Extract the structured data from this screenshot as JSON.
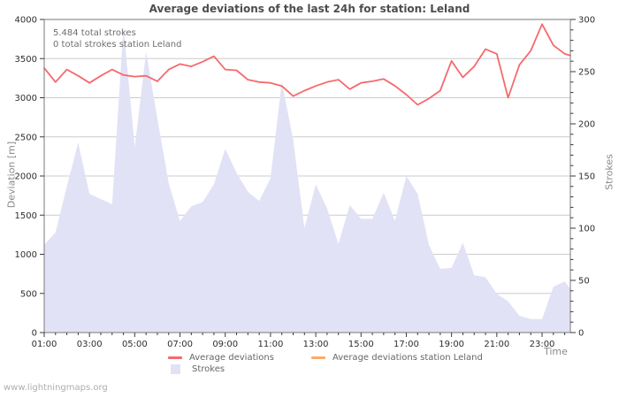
{
  "page": {
    "title": "Average deviations of the last 24h for station: Leland",
    "watermark": "www.lightningmaps.org"
  },
  "annotations": {
    "total_strokes": "5.484 total strokes",
    "station_strokes": "0 total strokes station Leland"
  },
  "axes": {
    "y_left_label": "Deviation [m]",
    "y_right_label": "Strokes",
    "x_label": "Time"
  },
  "legend": [
    {
      "label": "Average deviations",
      "color": "#f5696d",
      "type": "line"
    },
    {
      "label": "Average deviations station Leland",
      "color": "#fbaa6a",
      "type": "line"
    },
    {
      "label": "Strokes",
      "color": "#e2e2f6",
      "type": "area"
    }
  ],
  "chart_data": {
    "type": "line",
    "title": "Average deviations of the last 24h for station: Leland",
    "grid": "horizontal",
    "x_hours": [
      1,
      1.5,
      2,
      2.5,
      3,
      3.5,
      4,
      4.5,
      5,
      5.5,
      6,
      6.5,
      7,
      7.5,
      8,
      8.5,
      9,
      9.5,
      10,
      10.5,
      11,
      11.5,
      12,
      12.5,
      13,
      13.5,
      14,
      14.5,
      15,
      15.5,
      16,
      16.5,
      17,
      17.5,
      18,
      18.5,
      19,
      19.5,
      20,
      20.5,
      21,
      21.5,
      22,
      22.5,
      23,
      23.5,
      24,
      24.25
    ],
    "series": [
      {
        "name": "Average deviations",
        "type": "line",
        "axis": "left",
        "color": "#f5696d",
        "values": [
          3380,
          3200,
          3360,
          3280,
          3190,
          3280,
          3360,
          3290,
          3270,
          3280,
          3210,
          3360,
          3430,
          3400,
          3460,
          3530,
          3360,
          3350,
          3230,
          3200,
          3190,
          3150,
          3020,
          3090,
          3150,
          3200,
          3230,
          3110,
          3190,
          3210,
          3240,
          3150,
          3040,
          2910,
          2990,
          3090,
          3470,
          3260,
          3400,
          3620,
          3560,
          3000,
          3420,
          3600,
          3940,
          3670,
          3560,
          3540
        ]
      },
      {
        "name": "Average deviations station Leland",
        "type": "line",
        "axis": "left",
        "color": "#fbaa6a",
        "values": []
      },
      {
        "name": "Strokes",
        "type": "area",
        "axis": "right",
        "color": "#e2e2f6",
        "values": [
          84,
          96,
          140,
          182,
          133,
          128,
          123,
          293,
          178,
          269,
          205,
          143,
          107,
          121,
          125,
          142,
          176,
          153,
          135,
          126,
          148,
          240,
          185,
          100,
          142,
          119,
          85,
          122,
          109,
          109,
          134,
          107,
          150,
          133,
          84,
          61,
          62,
          86,
          55,
          53,
          37,
          30,
          16,
          13,
          13,
          44,
          49,
          42
        ]
      }
    ],
    "x_axis": {
      "range": [
        1,
        24.25
      ],
      "tick_hours": [
        1,
        3,
        5,
        7,
        9,
        11,
        13,
        15,
        17,
        19,
        21,
        23
      ],
      "tick_labels": [
        "01:00",
        "03:00",
        "05:00",
        "07:00",
        "09:00",
        "11:00",
        "13:00",
        "15:00",
        "17:00",
        "19:00",
        "21:00",
        "23:00"
      ],
      "minor_step_hours": 0.5,
      "label": "Time"
    },
    "y_left": {
      "label": "Deviation [m]",
      "range": [
        0,
        4000
      ],
      "tick_step": 500,
      "tick_labels": [
        "0",
        "500",
        "1000",
        "1500",
        "2000",
        "2500",
        "3000",
        "3500",
        "4000"
      ]
    },
    "y_right": {
      "label": "Strokes",
      "range": [
        0,
        300
      ],
      "major_step": 50,
      "minor_step": 10,
      "tick_labels": [
        "0",
        "50",
        "100",
        "150",
        "200",
        "250",
        "300"
      ]
    }
  }
}
